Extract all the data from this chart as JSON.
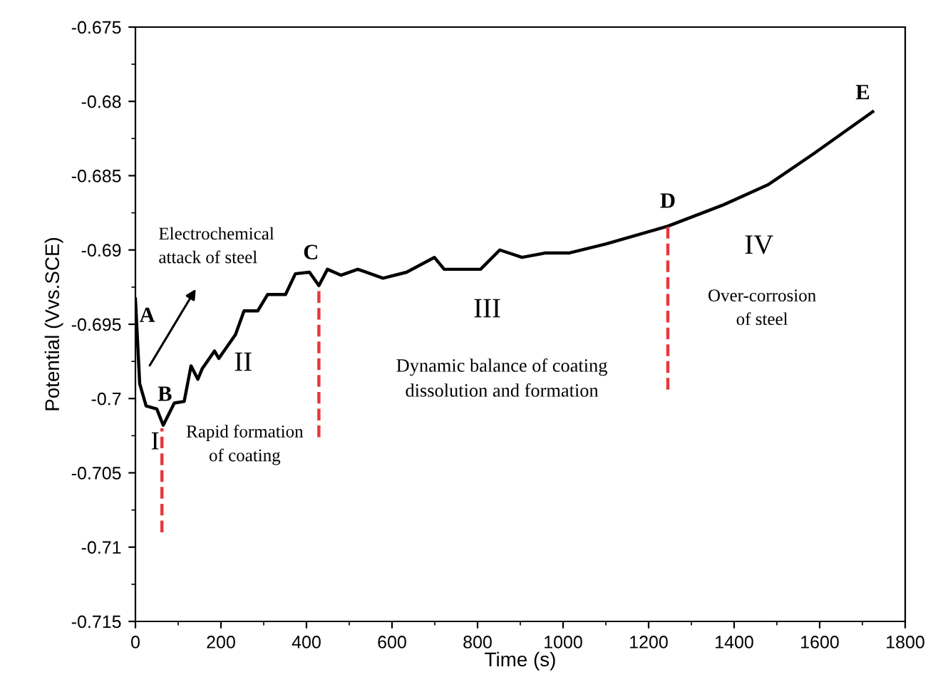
{
  "chart_data": {
    "type": "line",
    "xlabel": "Time (s)",
    "ylabel": "Potential (Vvs.SCE)",
    "x": [
      0,
      3,
      10,
      25,
      50,
      65,
      91,
      114,
      130,
      146,
      156,
      185,
      195,
      234,
      254,
      286,
      309,
      351,
      374,
      407,
      429,
      449,
      481,
      520,
      579,
      634,
      699,
      722,
      764,
      807,
      852,
      904,
      959,
      1015,
      1100,
      1245,
      1372,
      1480,
      1587,
      1724
    ],
    "series": [
      {
        "color": "#000000",
        "values": [
          -0.6933,
          -0.695,
          -0.699,
          -0.7005,
          -0.7007,
          -0.7018,
          -0.7003,
          -0.7002,
          -0.6978,
          -0.6987,
          -0.698,
          -0.6968,
          -0.6973,
          -0.6957,
          -0.6941,
          -0.6941,
          -0.693,
          -0.693,
          -0.6916,
          -0.6915,
          -0.6924,
          -0.6913,
          -0.6917,
          -0.6913,
          -0.6919,
          -0.6915,
          -0.6905,
          -0.6913,
          -0.6913,
          -0.6913,
          -0.69,
          -0.6905,
          -0.6902,
          -0.6902,
          -0.6896,
          -0.6884,
          -0.687,
          -0.6856,
          -0.6835,
          -0.6807
        ]
      }
    ],
    "xlim": [
      0,
      1800
    ],
    "xticks": [
      0,
      200,
      400,
      600,
      800,
      1000,
      1200,
      1400,
      1600,
      1800
    ],
    "ylim": [
      -0.715,
      -0.675
    ],
    "yticks": [
      -0.715,
      -0.71,
      -0.705,
      -0.7,
      -0.695,
      -0.69,
      -0.685,
      -0.68,
      -0.675
    ],
    "grid": false,
    "legend": false,
    "marker": "none",
    "line_style": "solid",
    "ref_lines": [
      {
        "axis": "x",
        "value": 62,
        "label": null,
        "color": "#e8383d",
        "line_style": "dashed"
      },
      {
        "axis": "x",
        "value": 429,
        "label": null,
        "color": "#e8383d",
        "line_style": "dashed"
      },
      {
        "axis": "x",
        "value": 1245,
        "label": null,
        "color": "#e8383d",
        "line_style": "dashed"
      }
    ],
    "annotations": [
      {
        "text": "A",
        "x": 0,
        "y": -0.6933
      },
      {
        "text": "B",
        "x": 62,
        "y": -0.7018
      },
      {
        "text": "C",
        "x": 429,
        "y": -0.6924
      },
      {
        "text": "D",
        "x": 1245,
        "y": -0.6884
      },
      {
        "text": "E",
        "x": 1724,
        "y": -0.6807
      },
      "Electrochemical\nattack of steel",
      "Rapid formation\nof coating",
      "Dynamic balance of coating\ndissolution and formation",
      "Over-corrosion\nof steel",
      "I",
      "II",
      "III",
      "IV"
    ]
  }
}
